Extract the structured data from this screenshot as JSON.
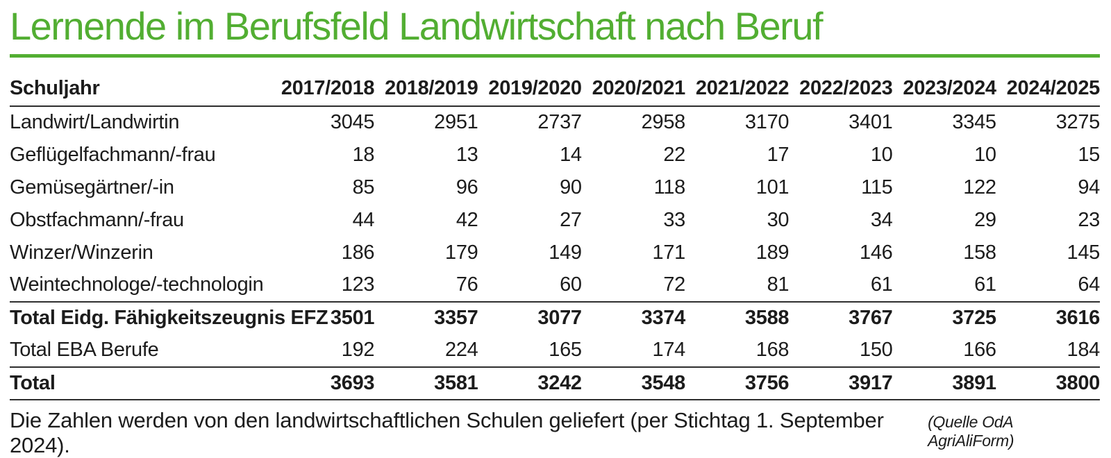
{
  "page_title": "Lernende im Berufsfeld Landwirtschaft nach Beruf",
  "colors": {
    "accent_green": "#52ae32",
    "text": "#1c1c1c",
    "rule_dark": "#2e2e2e"
  },
  "footnote": "Die Zahlen werden von den landwirtschaftlichen Schulen geliefert (per Stichtag 1. September 2024).",
  "source_note": "(Quelle OdA AgriAliForm)",
  "chart_data": {
    "type": "table",
    "title": "Lernende im Berufsfeld Landwirtschaft nach Beruf",
    "columns": [
      "Schuljahr",
      "2017/2018",
      "2018/2019",
      "2019/2020",
      "2020/2021",
      "2021/2022",
      "2022/2023",
      "2023/2024",
      "2024/2025"
    ],
    "rows": [
      {
        "label": "Landwirt/Landwirtin",
        "values": [
          3045,
          2951,
          2737,
          2958,
          3170,
          3401,
          3345,
          3275
        ],
        "bold": false,
        "rule_above": false
      },
      {
        "label": "Geflügelfachmann/-frau",
        "values": [
          18,
          13,
          14,
          22,
          17,
          10,
          10,
          15
        ],
        "bold": false,
        "rule_above": false
      },
      {
        "label": "Gemüsegärtner/-in",
        "values": [
          85,
          96,
          90,
          118,
          101,
          115,
          122,
          94
        ],
        "bold": false,
        "rule_above": false
      },
      {
        "label": "Obstfachmann/-frau",
        "values": [
          44,
          42,
          27,
          33,
          30,
          34,
          29,
          23
        ],
        "bold": false,
        "rule_above": false
      },
      {
        "label": "Winzer/Winzerin",
        "values": [
          186,
          179,
          149,
          171,
          189,
          146,
          158,
          145
        ],
        "bold": false,
        "rule_above": false
      },
      {
        "label": "Weintechnologe/-technologin",
        "values": [
          123,
          76,
          60,
          72,
          81,
          61,
          61,
          64
        ],
        "bold": false,
        "rule_above": false
      },
      {
        "label": "Total Eidg. Fähigkeitszeugnis EFZ",
        "values": [
          3501,
          3357,
          3077,
          3374,
          3588,
          3767,
          3725,
          3616
        ],
        "bold": true,
        "rule_above": true
      },
      {
        "label": "Total EBA Berufe",
        "values": [
          192,
          224,
          165,
          174,
          168,
          150,
          166,
          184
        ],
        "bold": false,
        "rule_above": false
      },
      {
        "label": "Total",
        "values": [
          3693,
          3581,
          3242,
          3548,
          3756,
          3917,
          3891,
          3800
        ],
        "bold": true,
        "rule_above": true
      }
    ]
  }
}
